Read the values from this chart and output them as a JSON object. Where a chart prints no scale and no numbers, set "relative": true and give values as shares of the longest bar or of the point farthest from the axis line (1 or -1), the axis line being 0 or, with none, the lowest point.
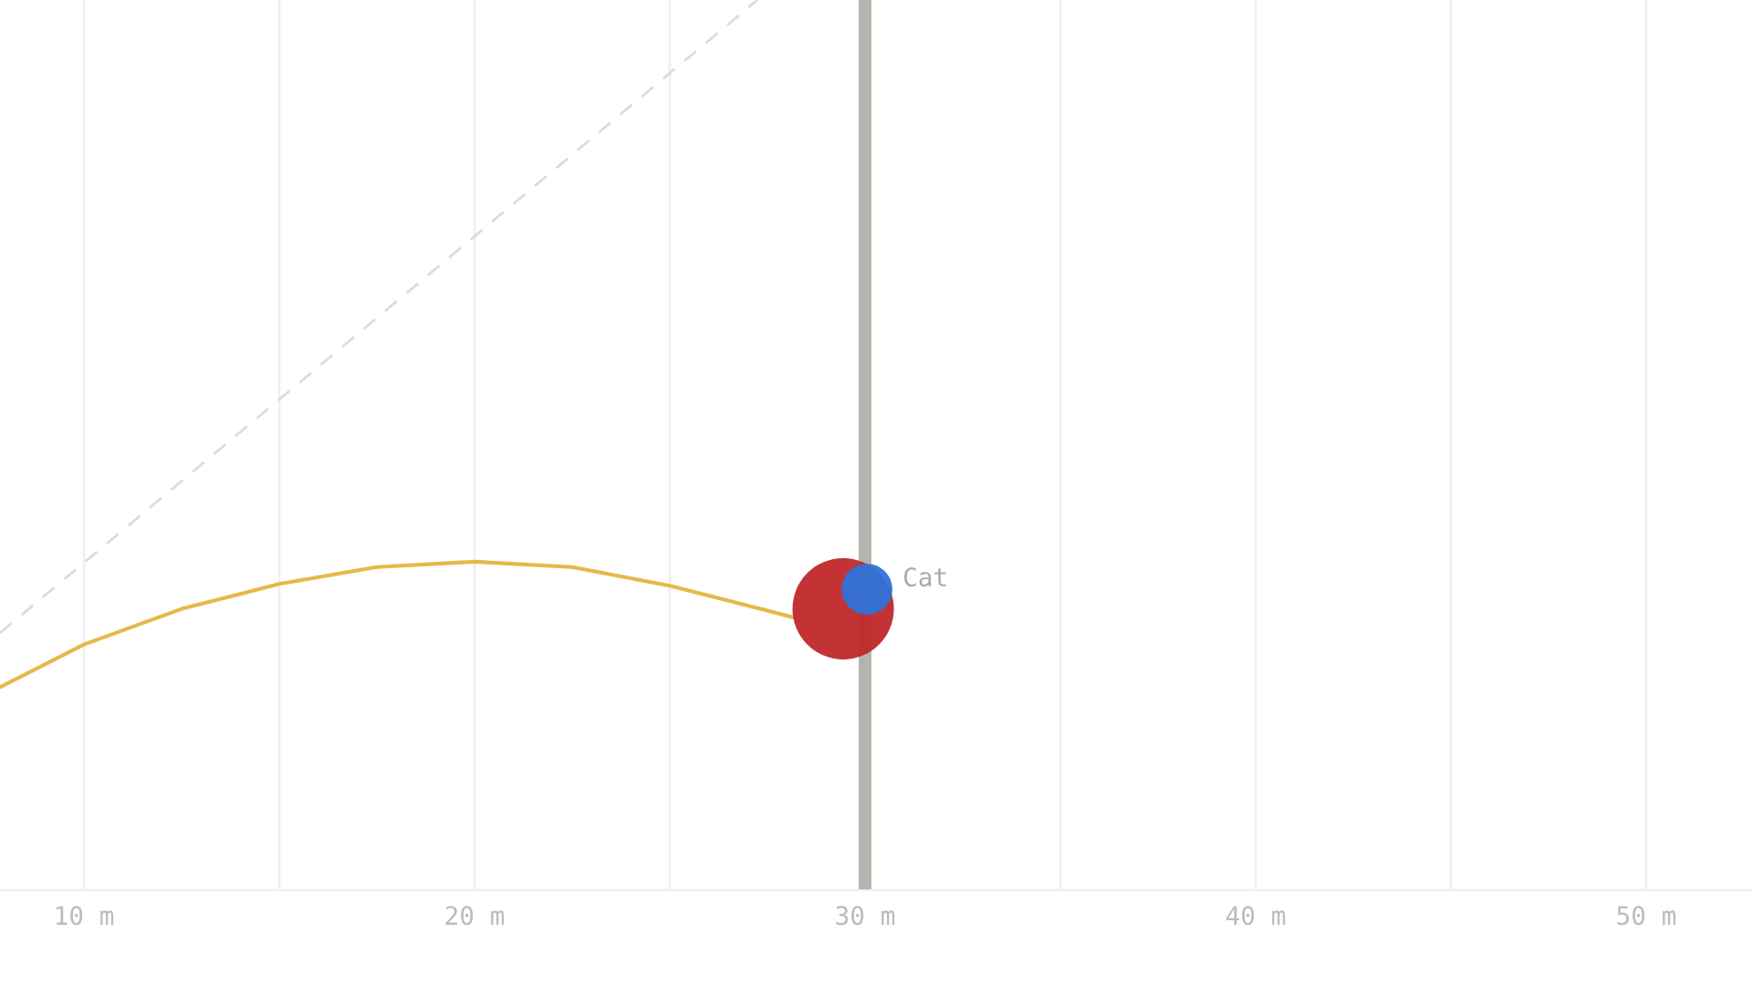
{
  "chart_data": {
    "type": "line",
    "relative": true,
    "tick_labels": "x",
    "grid": "x",
    "legend": false,
    "xlim": [
      7.85,
      52.71
    ],
    "xticks": [
      {
        "value": 10,
        "label": "10 m"
      },
      {
        "value": 15,
        "label": null
      },
      {
        "value": 20,
        "label": "20 m"
      },
      {
        "value": 25,
        "label": null
      },
      {
        "value": 30,
        "label": "30 m"
      },
      {
        "value": 35,
        "label": null
      },
      {
        "value": 40,
        "label": "40 m"
      },
      {
        "value": 45,
        "label": null
      },
      {
        "value": 50,
        "label": "50 m"
      }
    ],
    "ref_lines": [
      {
        "axis": "x",
        "value": 30,
        "color": "#b5b3ad"
      }
    ],
    "series": [
      {
        "color": "#e6b84a",
        "line_style": "solid",
        "x": [
          7.85,
          10,
          12.5,
          15,
          17.5,
          20,
          22.5,
          25,
          27.5,
          28.2
        ],
        "values": [
          0.228,
          0.276,
          0.316,
          0.344,
          0.363,
          0.369,
          0.363,
          0.342,
          0.314,
          0.306
        ]
      },
      {
        "color": "#dcdcdc",
        "line_style": "dashed",
        "x": [
          7.85,
          27.24
        ],
        "values": [
          0.289,
          1.0
        ]
      },
      {
        "type": "bubble",
        "color": "#2e73d8",
        "name": "Cat",
        "x": [
          30.05
        ],
        "values": [
          0.338
        ],
        "sizes": [
          0.25
        ]
      },
      {
        "type": "bubble",
        "color": "#c0282a",
        "x": [
          29.44
        ],
        "values": [
          0.316
        ],
        "sizes": [
          1
        ]
      }
    ]
  }
}
